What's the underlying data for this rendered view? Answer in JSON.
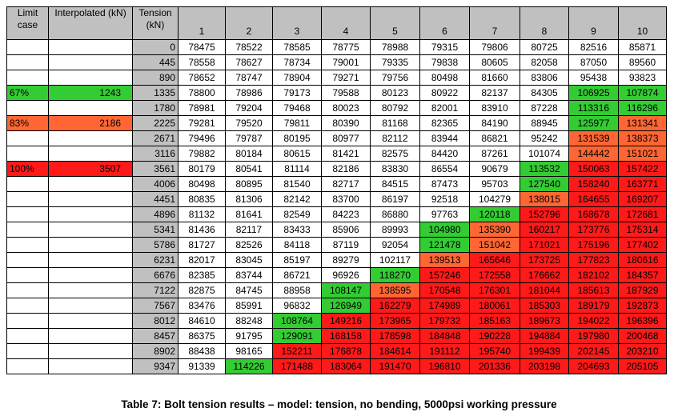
{
  "table": {
    "headers": {
      "limit_case": "Limit case",
      "interpolated": "Interpolated (kN)",
      "tension": "Tension (kN)",
      "columns": [
        "1",
        "2",
        "3",
        "4",
        "5",
        "6",
        "7",
        "8",
        "9",
        "10"
      ]
    },
    "colors": {
      "g": "#33cc33",
      "o": "#ff6633",
      "r": "#ff1a1a"
    },
    "rows": [
      {
        "limit": "",
        "interp": "",
        "tension": "0",
        "values": [
          "78475",
          "78522",
          "78585",
          "78775",
          "78988",
          "79315",
          "79806",
          "80725",
          "82516",
          "85871"
        ],
        "colors": [
          "",
          "",
          "",
          "",
          "",
          "",
          "",
          "",
          "",
          ""
        ]
      },
      {
        "limit": "",
        "interp": "",
        "tension": "445",
        "values": [
          "78558",
          "78627",
          "78734",
          "79001",
          "79335",
          "79838",
          "80605",
          "82058",
          "87050",
          "89560"
        ],
        "colors": [
          "",
          "",
          "",
          "",
          "",
          "",
          "",
          "",
          "",
          ""
        ]
      },
      {
        "limit": "",
        "interp": "",
        "tension": "890",
        "values": [
          "78652",
          "78747",
          "78904",
          "79271",
          "79756",
          "80498",
          "81660",
          "83806",
          "95438",
          "93823"
        ],
        "colors": [
          "",
          "",
          "",
          "",
          "",
          "",
          "",
          "",
          "",
          ""
        ]
      },
      {
        "limit": "67%",
        "interp": "1243",
        "tension": "1335",
        "values": [
          "78800",
          "78986",
          "79173",
          "79588",
          "80123",
          "80922",
          "82137",
          "84305",
          "106925",
          "107874"
        ],
        "colors": [
          "",
          "",
          "",
          "",
          "",
          "",
          "",
          "",
          "g",
          "g"
        ],
        "limitColor": "g"
      },
      {
        "limit": "",
        "interp": "",
        "tension": "1780",
        "values": [
          "78981",
          "79204",
          "79468",
          "80023",
          "80792",
          "82001",
          "83910",
          "87228",
          "113316",
          "116296"
        ],
        "colors": [
          "",
          "",
          "",
          "",
          "",
          "",
          "",
          "",
          "g",
          "g"
        ]
      },
      {
        "limit": "83%",
        "interp": "2186",
        "tension": "2225",
        "values": [
          "79281",
          "79520",
          "79811",
          "80390",
          "81168",
          "82365",
          "84190",
          "88945",
          "125977",
          "131341"
        ],
        "colors": [
          "",
          "",
          "",
          "",
          "",
          "",
          "",
          "",
          "g",
          "o"
        ],
        "limitColor": "o"
      },
      {
        "limit": "",
        "interp": "",
        "tension": "2671",
        "values": [
          "79496",
          "79787",
          "80195",
          "80977",
          "82112",
          "83944",
          "86821",
          "95242",
          "131539",
          "138373"
        ],
        "colors": [
          "",
          "",
          "",
          "",
          "",
          "",
          "",
          "",
          "o",
          "o"
        ]
      },
      {
        "limit": "",
        "interp": "",
        "tension": "3116",
        "values": [
          "79882",
          "80184",
          "80615",
          "81421",
          "82575",
          "84420",
          "87261",
          "101074",
          "144442",
          "151021"
        ],
        "colors": [
          "",
          "",
          "",
          "",
          "",
          "",
          "",
          "",
          "o",
          "o"
        ]
      },
      {
        "limit": "100%",
        "interp": "3507",
        "tension": "3561",
        "values": [
          "80179",
          "80541",
          "81114",
          "82186",
          "83830",
          "86554",
          "90679",
          "113532",
          "150063",
          "157422"
        ],
        "colors": [
          "",
          "",
          "",
          "",
          "",
          "",
          "",
          "g",
          "r",
          "r"
        ],
        "limitColor": "r"
      },
      {
        "limit": "",
        "interp": "",
        "tension": "4006",
        "values": [
          "80498",
          "80895",
          "81540",
          "82717",
          "84515",
          "87473",
          "95703",
          "127540",
          "158240",
          "163771"
        ],
        "colors": [
          "",
          "",
          "",
          "",
          "",
          "",
          "",
          "g",
          "r",
          "r"
        ]
      },
      {
        "limit": "",
        "interp": "",
        "tension": "4451",
        "values": [
          "80835",
          "81306",
          "82142",
          "83700",
          "86197",
          "92518",
          "104279",
          "138015",
          "164655",
          "169207"
        ],
        "colors": [
          "",
          "",
          "",
          "",
          "",
          "",
          "",
          "o",
          "r",
          "r"
        ]
      },
      {
        "limit": "",
        "interp": "",
        "tension": "4896",
        "values": [
          "81132",
          "81641",
          "82549",
          "84223",
          "86880",
          "97763",
          "120118",
          "152796",
          "168678",
          "172681"
        ],
        "colors": [
          "",
          "",
          "",
          "",
          "",
          "",
          "g",
          "r",
          "r",
          "r"
        ]
      },
      {
        "limit": "",
        "interp": "",
        "tension": "5341",
        "values": [
          "81436",
          "82117",
          "83433",
          "85906",
          "89993",
          "104980",
          "135390",
          "160217",
          "173776",
          "175314"
        ],
        "colors": [
          "",
          "",
          "",
          "",
          "",
          "g",
          "o",
          "r",
          "r",
          "r"
        ]
      },
      {
        "limit": "",
        "interp": "",
        "tension": "5786",
        "values": [
          "81727",
          "82526",
          "84118",
          "87119",
          "92054",
          "121478",
          "151042",
          "171021",
          "175196",
          "177402"
        ],
        "colors": [
          "",
          "",
          "",
          "",
          "",
          "g",
          "o",
          "r",
          "r",
          "r"
        ]
      },
      {
        "limit": "",
        "interp": "",
        "tension": "6231",
        "values": [
          "82017",
          "83045",
          "85197",
          "89279",
          "102117",
          "139513",
          "165646",
          "173725",
          "177823",
          "180616"
        ],
        "colors": [
          "",
          "",
          "",
          "",
          "",
          "o",
          "r",
          "r",
          "r",
          "r"
        ]
      },
      {
        "limit": "",
        "interp": "",
        "tension": "6676",
        "values": [
          "82385",
          "83744",
          "86721",
          "96926",
          "118270",
          "157246",
          "172558",
          "176662",
          "182102",
          "184357"
        ],
        "colors": [
          "",
          "",
          "",
          "",
          "g",
          "r",
          "r",
          "r",
          "r",
          "r"
        ]
      },
      {
        "limit": "",
        "interp": "",
        "tension": "7122",
        "values": [
          "82875",
          "84745",
          "88958",
          "108147",
          "138595",
          "170548",
          "176301",
          "181044",
          "185613",
          "187929"
        ],
        "colors": [
          "",
          "",
          "",
          "g",
          "o",
          "r",
          "r",
          "r",
          "r",
          "r"
        ]
      },
      {
        "limit": "",
        "interp": "",
        "tension": "7567",
        "values": [
          "83476",
          "85991",
          "96832",
          "126949",
          "162279",
          "174989",
          "180061",
          "185303",
          "189179",
          "192873"
        ],
        "colors": [
          "",
          "",
          "",
          "g",
          "r",
          "r",
          "r",
          "r",
          "r",
          "r"
        ]
      },
      {
        "limit": "",
        "interp": "",
        "tension": "8012",
        "values": [
          "84610",
          "88248",
          "108764",
          "149216",
          "173965",
          "179732",
          "185163",
          "189673",
          "194022",
          "196396"
        ],
        "colors": [
          "",
          "",
          "g",
          "r",
          "r",
          "r",
          "r",
          "r",
          "r",
          "r"
        ]
      },
      {
        "limit": "",
        "interp": "",
        "tension": "8457",
        "values": [
          "86375",
          "91795",
          "129091",
          "168158",
          "178598",
          "184848",
          "190228",
          "194884",
          "197980",
          "200468"
        ],
        "colors": [
          "",
          "",
          "g",
          "r",
          "r",
          "r",
          "r",
          "r",
          "r",
          "r"
        ]
      },
      {
        "limit": "",
        "interp": "",
        "tension": "8902",
        "values": [
          "88438",
          "98165",
          "152211",
          "176878",
          "184614",
          "191112",
          "195740",
          "199439",
          "202145",
          "203210"
        ],
        "colors": [
          "",
          "",
          "r",
          "r",
          "r",
          "r",
          "r",
          "r",
          "r",
          "r"
        ]
      },
      {
        "limit": "",
        "interp": "",
        "tension": "9347",
        "values": [
          "91339",
          "114226",
          "171488",
          "183064",
          "191470",
          "196810",
          "201336",
          "203198",
          "204693",
          "205105"
        ],
        "colors": [
          "",
          "g",
          "r",
          "r",
          "r",
          "r",
          "r",
          "r",
          "r",
          "r"
        ]
      }
    ]
  },
  "caption": "Table 7: Bolt tension results – model: tension, no bending, 5000psi working  pressure"
}
